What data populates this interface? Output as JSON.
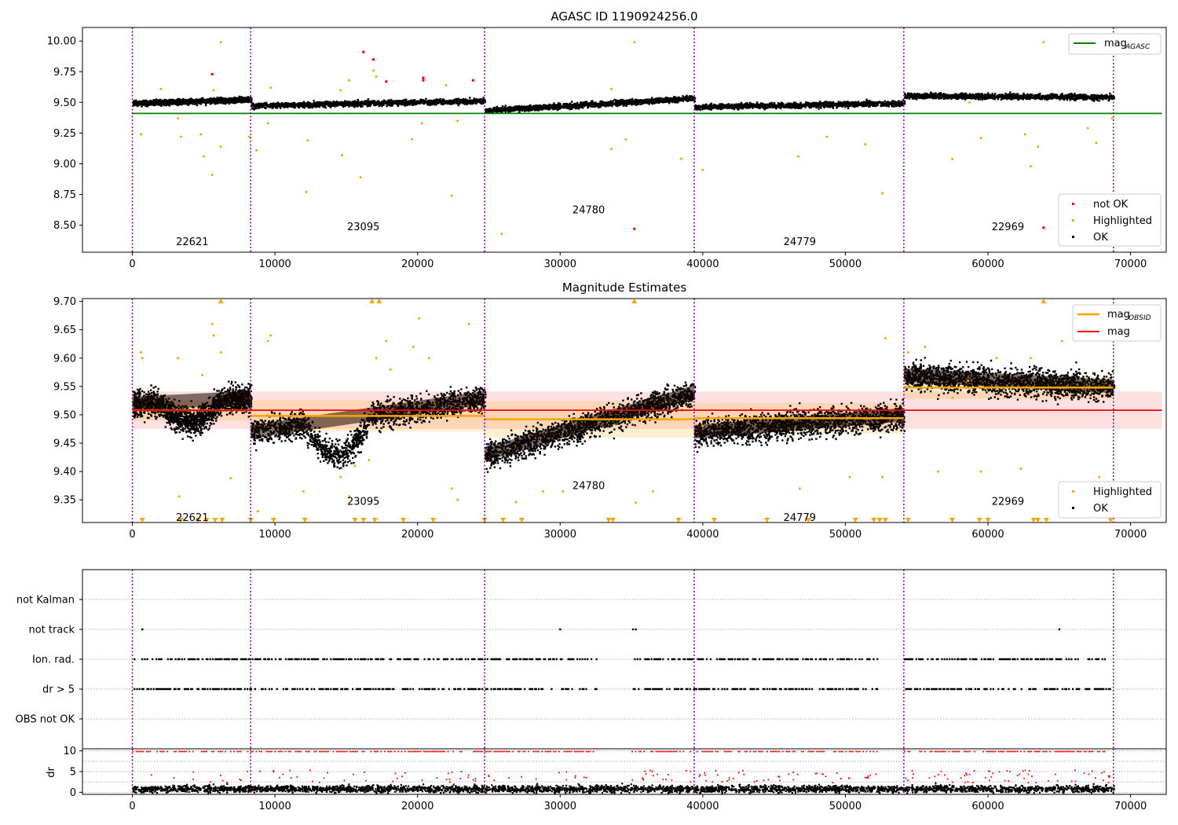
{
  "chart_data": [
    {
      "type": "scatter",
      "title": "AGASC ID 1190924256.0",
      "xlabel": "",
      "ylabel": "",
      "xlim": [
        -3500,
        72500
      ],
      "ylim": [
        8.28,
        10.11
      ],
      "xticks": [
        0,
        10000,
        20000,
        30000,
        40000,
        50000,
        60000,
        70000
      ],
      "yticks": [
        10.0,
        9.75,
        9.5,
        9.25,
        9.0,
        8.75,
        8.5
      ],
      "ytick_labels": [
        "10.00",
        "9.75",
        "9.50",
        "9.25",
        "9.00",
        "8.75",
        "8.50"
      ],
      "obs_boundaries": [
        0,
        8300,
        24700,
        39400,
        54100,
        68800
      ],
      "obsids": [
        {
          "label": "22621",
          "x": 4200,
          "y": 8.37
        },
        {
          "label": "23095",
          "x": 16200,
          "y": 8.49
        },
        {
          "label": "24780",
          "x": 32000,
          "y": 8.63
        },
        {
          "label": "24779",
          "x": 46800,
          "y": 8.37
        },
        {
          "label": "22969",
          "x": 61400,
          "y": 8.49
        }
      ],
      "reference_line": {
        "name": "mag_AGASC",
        "y": 9.41,
        "x_range": [
          0,
          72200
        ],
        "color": "#008000"
      },
      "segments": [
        {
          "x0": 0,
          "x1": 8300,
          "y0": 9.5,
          "y1": 9.53
        },
        {
          "x0": 8300,
          "x1": 24700,
          "y0": 9.48,
          "y1": 9.52
        },
        {
          "x0": 24700,
          "x1": 39400,
          "y0": 9.44,
          "y1": 9.54
        },
        {
          "x0": 39400,
          "x1": 54100,
          "y0": 9.47,
          "y1": 9.5
        },
        {
          "x0": 54100,
          "x1": 68800,
          "y0": 9.56,
          "y1": 9.55
        }
      ],
      "series": [
        {
          "name": "not OK",
          "color": "#ff0000",
          "points": [
            [
              5600,
              9.73
            ],
            [
              16200,
              9.91
            ],
            [
              16900,
              9.85
            ],
            [
              17800,
              9.67
            ],
            [
              20400,
              9.7
            ],
            [
              20400,
              9.68
            ],
            [
              23900,
              9.68
            ],
            [
              35200,
              8.47
            ],
            [
              63900,
              8.48
            ]
          ]
        },
        {
          "name": "Highlighted",
          "color": "#ffa500",
          "points": [
            [
              600,
              9.24
            ],
            [
              2000,
              9.61
            ],
            [
              3200,
              9.37
            ],
            [
              3400,
              9.22
            ],
            [
              4800,
              9.24
            ],
            [
              5000,
              9.06
            ],
            [
              5600,
              8.91
            ],
            [
              5700,
              9.6
            ],
            [
              6200,
              9.99
            ],
            [
              6200,
              9.14
            ],
            [
              8200,
              9.22
            ],
            [
              8700,
              9.11
            ],
            [
              9500,
              9.33
            ],
            [
              9700,
              9.62
            ],
            [
              12200,
              8.77
            ],
            [
              12300,
              9.19
            ],
            [
              14600,
              9.6
            ],
            [
              14700,
              9.07
            ],
            [
              15200,
              9.68
            ],
            [
              16000,
              8.89
            ],
            [
              16900,
              9.76
            ],
            [
              17100,
              9.71
            ],
            [
              19600,
              9.2
            ],
            [
              20300,
              9.33
            ],
            [
              22000,
              9.64
            ],
            [
              22400,
              8.74
            ],
            [
              22800,
              9.35
            ],
            [
              25900,
              8.43
            ],
            [
              33600,
              9.12
            ],
            [
              33600,
              9.61
            ],
            [
              34600,
              9.2
            ],
            [
              35200,
              9.99
            ],
            [
              38500,
              9.04
            ],
            [
              40000,
              8.95
            ],
            [
              46700,
              9.06
            ],
            [
              48700,
              9.22
            ],
            [
              51400,
              9.16
            ],
            [
              52600,
              8.76
            ],
            [
              57500,
              9.04
            ],
            [
              58700,
              9.5
            ],
            [
              59500,
              9.21
            ],
            [
              62600,
              9.24
            ],
            [
              63000,
              8.98
            ],
            [
              63500,
              9.14
            ],
            [
              63900,
              9.99
            ],
            [
              67000,
              9.29
            ],
            [
              67600,
              9.17
            ],
            [
              68700,
              9.37
            ]
          ]
        },
        {
          "name": "OK",
          "color": "#000000",
          "points": []
        }
      ],
      "legends": [
        {
          "position": "top-right",
          "entries": [
            {
              "label": "mag",
              "subscript": "AGASC",
              "marker": "line",
              "color": "#008000"
            }
          ]
        },
        {
          "position": "bottom-right",
          "entries": [
            {
              "label": "not OK",
              "marker": "dot",
              "color": "#ff0000"
            },
            {
              "label": "Highlighted",
              "marker": "dot",
              "color": "#ffa500"
            },
            {
              "label": "OK",
              "marker": "dot",
              "color": "#000000"
            }
          ]
        }
      ],
      "grid": false
    },
    {
      "type": "scatter",
      "title": "Magnitude Estimates",
      "xlabel": "",
      "ylabel": "",
      "xlim": [
        -3500,
        72500
      ],
      "ylim": [
        9.31,
        9.705
      ],
      "xticks": [
        0,
        10000,
        20000,
        30000,
        40000,
        50000,
        60000,
        70000
      ],
      "yticks": [
        9.7,
        9.65,
        9.6,
        9.55,
        9.5,
        9.45,
        9.4,
        9.35
      ],
      "ytick_labels": [
        "9.70",
        "9.65",
        "9.60",
        "9.55",
        "9.50",
        "9.45",
        "9.40",
        "9.35"
      ],
      "obs_boundaries": [
        0,
        8300,
        24700,
        39400,
        54100,
        68800
      ],
      "obsids": [
        {
          "label": "22621",
          "x": 4200,
          "y": 9.32
        },
        {
          "label": "23095",
          "x": 16200,
          "y": 9.348
        },
        {
          "label": "24780",
          "x": 32000,
          "y": 9.376
        },
        {
          "label": "24779",
          "x": 46800,
          "y": 9.32
        },
        {
          "label": "22969",
          "x": 61400,
          "y": 9.348
        }
      ],
      "mag": {
        "name": "mag",
        "value": 9.508,
        "band": [
          9.475,
          9.541
        ],
        "x_range": [
          0,
          72200
        ],
        "color": "#ff0000"
      },
      "mag_obsid": [
        {
          "x0": 0,
          "x1": 8300,
          "value": 9.508,
          "band": [
            9.49,
            9.526
          ]
        },
        {
          "x0": 8300,
          "x1": 24700,
          "value": 9.498,
          "band": [
            9.47,
            9.526
          ]
        },
        {
          "x0": 24700,
          "x1": 39400,
          "value": 9.492,
          "band": [
            9.46,
            9.524
          ]
        },
        {
          "x0": 39400,
          "x1": 54100,
          "value": 9.494,
          "band": [
            9.467,
            9.521
          ]
        },
        {
          "x0": 54100,
          "x1": 68800,
          "value": 9.548,
          "band": [
            9.528,
            9.568
          ]
        }
      ],
      "segments": [
        {
          "x0": 0,
          "x1": 8300,
          "y0": 9.52,
          "y1": 9.53,
          "dip": [
            1800,
            6200,
            9.49
          ]
        },
        {
          "x0": 8300,
          "x1": 24700,
          "y0": 9.47,
          "y1": 9.53,
          "dip": [
            12000,
            16800,
            9.44
          ]
        },
        {
          "x0": 24700,
          "x1": 39400,
          "y0": 9.43,
          "y1": 9.54,
          "dip": [
            0,
            0,
            0
          ]
        },
        {
          "x0": 39400,
          "x1": 54100,
          "y0": 9.47,
          "y1": 9.5,
          "dip": [
            0,
            0,
            0
          ]
        },
        {
          "x0": 54100,
          "x1": 68800,
          "y0": 9.57,
          "y1": 9.55,
          "dip": [
            0,
            0,
            0
          ]
        }
      ],
      "series": [
        {
          "name": "Highlighted",
          "color": "#ffa500",
          "points": [
            [
              600,
              9.61
            ],
            [
              700,
              9.6
            ],
            [
              3200,
              9.6
            ],
            [
              3300,
              9.356
            ],
            [
              4900,
              9.57
            ],
            [
              5600,
              9.66
            ],
            [
              5700,
              9.64
            ],
            [
              6200,
              9.61
            ],
            [
              6900,
              9.388
            ],
            [
              8800,
              9.33
            ],
            [
              9500,
              9.63
            ],
            [
              9700,
              9.64
            ],
            [
              12000,
              9.365
            ],
            [
              14600,
              9.39
            ],
            [
              15200,
              9.356
            ],
            [
              15600,
              9.41
            ],
            [
              16600,
              9.42
            ],
            [
              17100,
              9.6
            ],
            [
              17800,
              9.63
            ],
            [
              18100,
              9.58
            ],
            [
              19700,
              9.62
            ],
            [
              20100,
              9.67
            ],
            [
              20800,
              9.6
            ],
            [
              22400,
              9.37
            ],
            [
              22800,
              9.35
            ],
            [
              23600,
              9.66
            ],
            [
              26900,
              9.346
            ],
            [
              28800,
              9.365
            ],
            [
              30200,
              9.365
            ],
            [
              35300,
              9.345
            ],
            [
              36500,
              9.365
            ],
            [
              40000,
              9.48
            ],
            [
              46800,
              9.37
            ],
            [
              50300,
              9.39
            ],
            [
              52600,
              9.39
            ],
            [
              52800,
              9.635
            ],
            [
              54400,
              9.61
            ],
            [
              55600,
              9.62
            ],
            [
              56500,
              9.4
            ],
            [
              57500,
              9.53
            ],
            [
              58600,
              9.56
            ],
            [
              59500,
              9.4
            ],
            [
              60600,
              9.6
            ],
            [
              62300,
              9.405
            ],
            [
              63000,
              9.6
            ],
            [
              65200,
              9.63
            ],
            [
              67500,
              9.36
            ],
            [
              67800,
              9.39
            ],
            [
              68500,
              9.37
            ]
          ]
        },
        {
          "name": "OK",
          "color": "#000000",
          "points": []
        }
      ],
      "out_of_range_markers": {
        "top": [
          6200,
          16800,
          17300,
          35200,
          63900
        ],
        "bottom": [
          700,
          3400,
          4600,
          5200,
          5800,
          6300,
          8300,
          9900,
          12100,
          15600,
          16200,
          17000,
          19000,
          21100,
          24700,
          26000,
          27300,
          33400,
          33700,
          38300,
          40800,
          44500,
          47400,
          50700,
          52000,
          52400,
          52800,
          54400,
          57500,
          59400,
          60000,
          63200,
          63500,
          64100,
          68600
        ]
      },
      "legends": [
        {
          "position": "top-right",
          "entries": [
            {
              "label": "mag",
              "subscript": "OBSID",
              "marker": "line",
              "color": "#ffa500"
            },
            {
              "label": "mag",
              "marker": "line",
              "color": "#ff0000"
            }
          ]
        },
        {
          "position": "bottom-right",
          "entries": [
            {
              "label": "Highlighted",
              "marker": "dot",
              "color": "#ffa500"
            },
            {
              "label": "OK",
              "marker": "dot",
              "color": "#000000"
            }
          ]
        }
      ],
      "grid": false
    },
    {
      "type": "scatter",
      "title": "",
      "xlabel": "",
      "ylabel": "",
      "xlim": [
        -3500,
        72500
      ],
      "categories": [
        "not Kalman",
        "not track",
        "Ion. rad.",
        "dr > 5",
        "OBS not OK"
      ],
      "obs_boundaries": [
        0,
        8300,
        24700,
        39400,
        54100,
        68800
      ],
      "flags": {
        "not track": [
          700,
          30000,
          35100,
          35300,
          65000
        ],
        "Ion. rad.": {
          "ranges": [
            [
              0,
              32500
            ],
            [
              35000,
              52200
            ],
            [
              54100,
              68500
            ]
          ],
          "gap_x": [
            [
              32500,
              35000
            ],
            [
              52200,
              54100
            ]
          ]
        },
        "dr > 5": {
          "ranges": [
            [
              0,
              32500
            ],
            [
              35000,
              52200
            ],
            [
              54100,
              68500
            ]
          ],
          "gap_x": [
            [
              32500,
              35000
            ],
            [
              52200,
              54100
            ]
          ]
        }
      },
      "grid": true
    },
    {
      "type": "scatter",
      "title": "",
      "xlabel": "",
      "ylabel": "dr",
      "xlim": [
        -3500,
        72500
      ],
      "ylim": [
        -0.5,
        10.5
      ],
      "yticks": [
        0,
        5,
        10
      ],
      "ytick_labels": [
        "0",
        "5",
        "10"
      ],
      "xticks": [
        0,
        10000,
        20000,
        30000,
        40000,
        50000,
        60000,
        70000
      ],
      "obs_boundaries": [
        0,
        8300,
        24700,
        39400,
        54100,
        68800
      ],
      "series": [
        {
          "name": "dr > 5",
          "color": "#ff0000",
          "y": 10,
          "ranges": [
            [
              0,
              32500
            ],
            [
              35000,
              52200
            ],
            [
              54100,
              68500
            ]
          ]
        },
        {
          "name": "dr",
          "color": "#000000",
          "typical": 1
        }
      ],
      "grid": true
    }
  ]
}
